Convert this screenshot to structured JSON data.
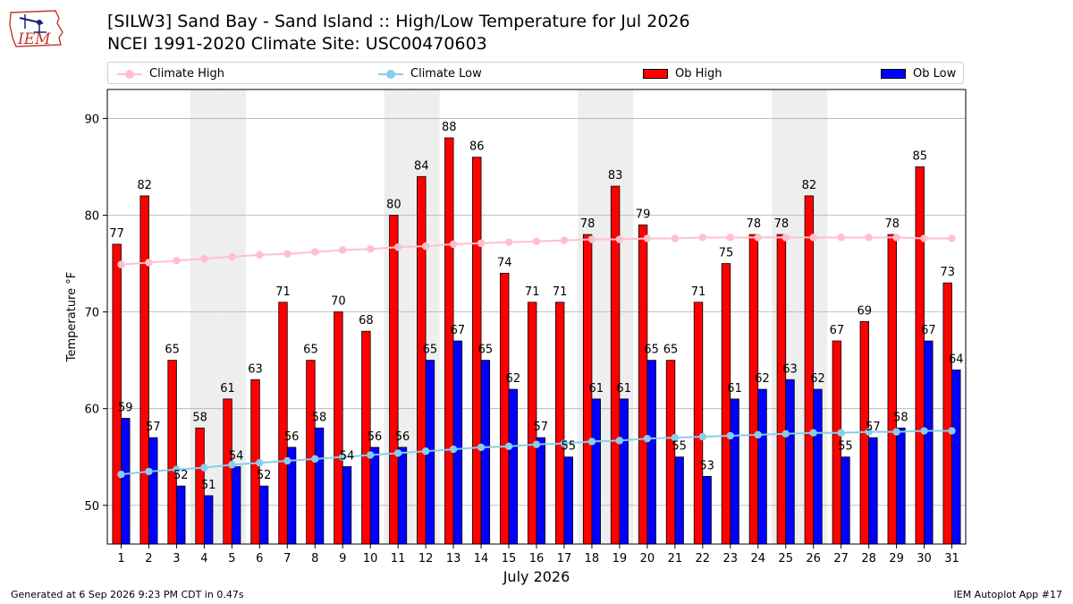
{
  "header": {
    "title_line1": "[SILW3] Sand Bay - Sand Island :: High/Low Temperature for Jul 2026",
    "title_line2": "NCEI 1991-2020 Climate Site: USC00470603",
    "logo_text": "IEM"
  },
  "footer": {
    "left": "Generated at 6 Sep 2026 9:23 PM CDT in 0.47s",
    "right": "IEM Autoplot App #17"
  },
  "colors": {
    "ob_high": "#ff0000",
    "ob_low": "#0000ff",
    "climate_high": "#ffc0cb",
    "climate_low": "#87ceeb",
    "weekend_band": "#eeeeee",
    "grid": "#b0b0b0"
  },
  "chart_data": {
    "type": "bar",
    "xlabel": "July 2026",
    "ylabel": "Temperature °F",
    "ylim": [
      46,
      93
    ],
    "yticks": [
      50,
      60,
      70,
      80,
      90
    ],
    "grid": "horizontal",
    "legend_position": "top",
    "categories": [
      1,
      2,
      3,
      4,
      5,
      6,
      7,
      8,
      9,
      10,
      11,
      12,
      13,
      14,
      15,
      16,
      17,
      18,
      19,
      20,
      21,
      22,
      23,
      24,
      25,
      26,
      27,
      28,
      29,
      30,
      31
    ],
    "shaded_days": [
      4,
      5,
      11,
      12,
      18,
      19,
      25,
      26
    ],
    "series": [
      {
        "name": "Ob High",
        "kind": "bar",
        "values": [
          77,
          82,
          65,
          58,
          61,
          63,
          71,
          65,
          70,
          68,
          80,
          84,
          88,
          86,
          74,
          71,
          71,
          78,
          83,
          79,
          65,
          71,
          75,
          78,
          78,
          82,
          67,
          69,
          78,
          85,
          73
        ]
      },
      {
        "name": "Ob Low",
        "kind": "bar",
        "values": [
          59,
          57,
          52,
          51,
          54,
          52,
          56,
          58,
          54,
          56,
          56,
          65,
          67,
          65,
          62,
          57,
          55,
          61,
          61,
          65,
          55,
          53,
          61,
          62,
          63,
          62,
          55,
          57,
          58,
          67,
          64
        ]
      },
      {
        "name": "Climate High",
        "kind": "line",
        "values": [
          74.9,
          75.1,
          75.3,
          75.5,
          75.7,
          75.9,
          76.0,
          76.2,
          76.4,
          76.5,
          76.7,
          76.8,
          77.0,
          77.1,
          77.2,
          77.3,
          77.4,
          77.5,
          77.5,
          77.6,
          77.6,
          77.7,
          77.7,
          77.7,
          77.7,
          77.7,
          77.7,
          77.7,
          77.7,
          77.6,
          77.6
        ]
      },
      {
        "name": "Climate Low",
        "kind": "line",
        "values": [
          53.2,
          53.5,
          53.7,
          53.9,
          54.2,
          54.4,
          54.6,
          54.8,
          55.0,
          55.2,
          55.4,
          55.6,
          55.8,
          56.0,
          56.1,
          56.3,
          56.4,
          56.6,
          56.7,
          56.9,
          57.0,
          57.1,
          57.2,
          57.3,
          57.4,
          57.5,
          57.5,
          57.6,
          57.6,
          57.7,
          57.7
        ]
      }
    ]
  }
}
